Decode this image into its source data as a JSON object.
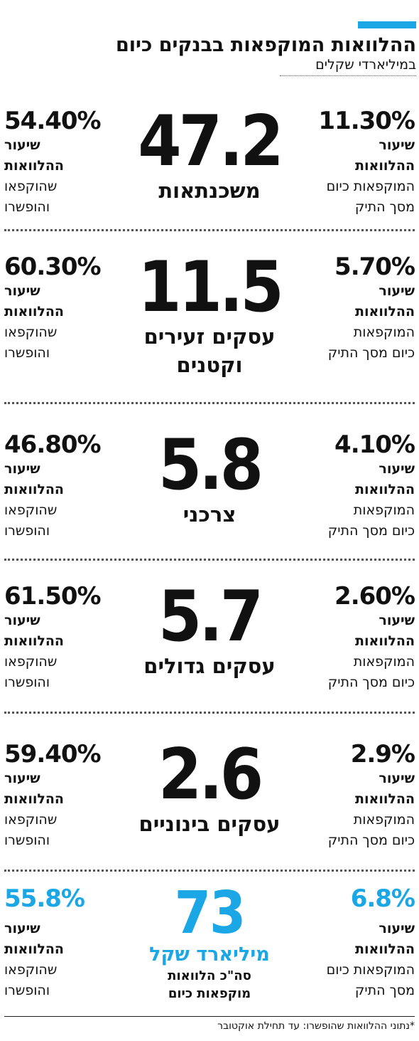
{
  "header": {
    "title": "ההלוואות המוקפאות בבנקים כיום",
    "subtitle": "במיליארדי שקלים"
  },
  "colors": {
    "accent": "#1ba7e6",
    "text": "#111111"
  },
  "rows": [
    {
      "value": "47.2",
      "label": "משכנתאות",
      "left_pct": "54.40%",
      "left_bold": "שיעור ההלוואות",
      "left_text": "שהוקפאו והופשרו",
      "right_pct": "11.30%",
      "right_bold": "שיעור ההלוואות",
      "right_text": "המוקפאות כיום מסך התיק"
    },
    {
      "value": "11.5",
      "label": "עסקים זעירים וקטנים",
      "left_pct": "60.30%",
      "left_bold": "שיעור ההלוואות",
      "left_text": "שהוקפאו והופשרו",
      "right_pct": "5.70%",
      "right_bold": "שיעור ההלוואות",
      "right_text": "המוקפאות כיום מסך התיק"
    },
    {
      "value": "5.8",
      "label": "צרכני",
      "left_pct": "46.80%",
      "left_bold": "שיעור ההלוואות",
      "left_text": "שהוקפאו והופשרו",
      "right_pct": "4.10%",
      "right_bold": "שיעור ההלוואות",
      "right_text": "המוקפאות כיום מסך התיק"
    },
    {
      "value": "5.7",
      "label": "עסקים גדולים",
      "left_pct": "61.50%",
      "left_bold": "שיעור ההלוואות",
      "left_text": "שהוקפאו והופשרו",
      "right_pct": "2.60%",
      "right_bold": "שיעור ההלוואות",
      "right_text": "המוקפאות כיום מסך התיק"
    },
    {
      "value": "2.6",
      "label": "עסקים בינוניים",
      "left_pct": "59.40%",
      "left_bold": "שיעור ההלוואות",
      "left_text": "שהוקפאו והופשרו",
      "right_pct": "2.9%",
      "right_bold": "שיעור ההלוואות",
      "right_text": "המוקפאות כיום מסך התיק"
    },
    {
      "value": "73",
      "label": "מיליארד שקל",
      "caption": "סה\"כ הלוואות מוקפאות כיום",
      "left_pct": "55.8%",
      "left_bold": "שיעור ההלוואות",
      "left_text": "שהוקפאו והופשרו",
      "right_pct": "6.8%",
      "right_bold": "שיעור ההלוואות",
      "right_text": "המוקפאות כיום מסך התיק"
    }
  ],
  "chart_data": {
    "type": "table",
    "title": "ההלוואות המוקפאות בבנקים כיום",
    "subtitle": "במיליארדי שקלים",
    "categories": [
      "משכנתאות",
      "עסקים זעירים וקטנים",
      "צרכני",
      "עסקים גדולים",
      "עסקים בינוניים",
      "מיליארד שקל"
    ],
    "series": [
      {
        "name": "במיליארדי שקלים",
        "values": [
          47.2,
          11.5,
          5.8,
          5.7,
          2.6,
          73
        ]
      },
      {
        "name": "שיעור ההלוואות שהוקפאו והופשרו",
        "values": [
          54.4,
          60.3,
          46.8,
          61.5,
          59.4,
          55.8
        ]
      },
      {
        "name": "שיעור ההלוואות המוקפאות כיום מסך התיק",
        "values": [
          11.3,
          5.7,
          4.1,
          2.6,
          2.9,
          6.8
        ]
      }
    ]
  },
  "footnote": "*נתוני ההלוואות שהופשרו: עד תחילת אוקטובר"
}
